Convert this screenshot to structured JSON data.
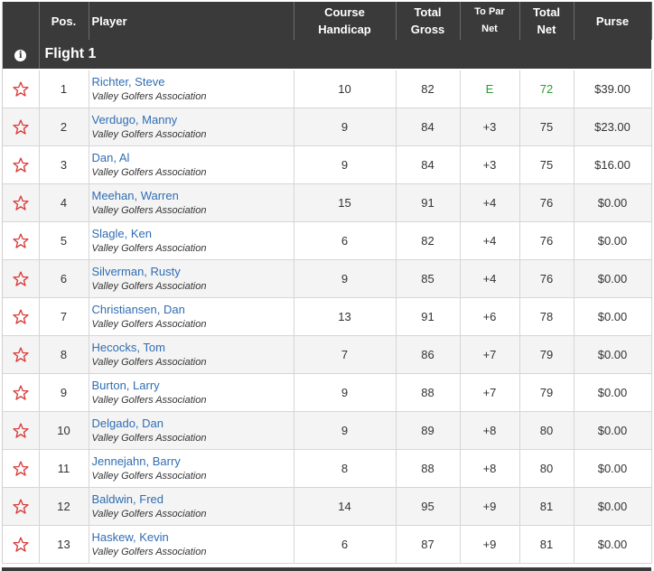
{
  "flight": {
    "title": "Flight 1",
    "info_icon": "info-icon"
  },
  "headers": {
    "pos": "Pos.",
    "player": "Player",
    "hcp_line1": "Course",
    "hcp_line2": "Handicap",
    "gross_line1": "Total",
    "gross_line2": "Gross",
    "topar_line1": "To Par",
    "topar_line2": "Net",
    "net_line1": "Total",
    "net_line2": "Net",
    "purse": "Purse"
  },
  "colors": {
    "header_bg": "#3a3a3a",
    "star": "#d93a3a",
    "link": "#2f6db3",
    "over_par": "#8a2c9e",
    "even_par": "#2e9a2e"
  },
  "rows": [
    {
      "pos": "1",
      "name": "Richter, Steve",
      "club": "Valley Golfers Association",
      "hcp": "10",
      "gross": "82",
      "topar": "E",
      "net": "72",
      "purse": "$39.00"
    },
    {
      "pos": "2",
      "name": "Verdugo, Manny",
      "club": "Valley Golfers Association",
      "hcp": "9",
      "gross": "84",
      "topar": "+3",
      "net": "75",
      "purse": "$23.00"
    },
    {
      "pos": "3",
      "name": "Dan, Al",
      "club": "Valley Golfers Association",
      "hcp": "9",
      "gross": "84",
      "topar": "+3",
      "net": "75",
      "purse": "$16.00"
    },
    {
      "pos": "4",
      "name": "Meehan, Warren",
      "club": "Valley Golfers Association",
      "hcp": "15",
      "gross": "91",
      "topar": "+4",
      "net": "76",
      "purse": "$0.00"
    },
    {
      "pos": "5",
      "name": "Slagle, Ken",
      "club": "Valley Golfers Association",
      "hcp": "6",
      "gross": "82",
      "topar": "+4",
      "net": "76",
      "purse": "$0.00"
    },
    {
      "pos": "6",
      "name": "Silverman, Rusty",
      "club": "Valley Golfers Association",
      "hcp": "9",
      "gross": "85",
      "topar": "+4",
      "net": "76",
      "purse": "$0.00"
    },
    {
      "pos": "7",
      "name": "Christiansen, Dan",
      "club": "Valley Golfers Association",
      "hcp": "13",
      "gross": "91",
      "topar": "+6",
      "net": "78",
      "purse": "$0.00"
    },
    {
      "pos": "8",
      "name": "Hecocks, Tom",
      "club": "Valley Golfers Association",
      "hcp": "7",
      "gross": "86",
      "topar": "+7",
      "net": "79",
      "purse": "$0.00"
    },
    {
      "pos": "9",
      "name": "Burton, Larry",
      "club": "Valley Golfers Association",
      "hcp": "9",
      "gross": "88",
      "topar": "+7",
      "net": "79",
      "purse": "$0.00"
    },
    {
      "pos": "10",
      "name": "Delgado, Dan",
      "club": "Valley Golfers Association",
      "hcp": "9",
      "gross": "89",
      "topar": "+8",
      "net": "80",
      "purse": "$0.00"
    },
    {
      "pos": "11",
      "name": "Jennejahn, Barry",
      "club": "Valley Golfers Association",
      "hcp": "8",
      "gross": "88",
      "topar": "+8",
      "net": "80",
      "purse": "$0.00"
    },
    {
      "pos": "12",
      "name": "Baldwin, Fred",
      "club": "Valley Golfers Association",
      "hcp": "14",
      "gross": "95",
      "topar": "+9",
      "net": "81",
      "purse": "$0.00"
    },
    {
      "pos": "13",
      "name": "Haskew, Kevin",
      "club": "Valley Golfers Association",
      "hcp": "6",
      "gross": "87",
      "topar": "+9",
      "net": "81",
      "purse": "$0.00"
    }
  ]
}
